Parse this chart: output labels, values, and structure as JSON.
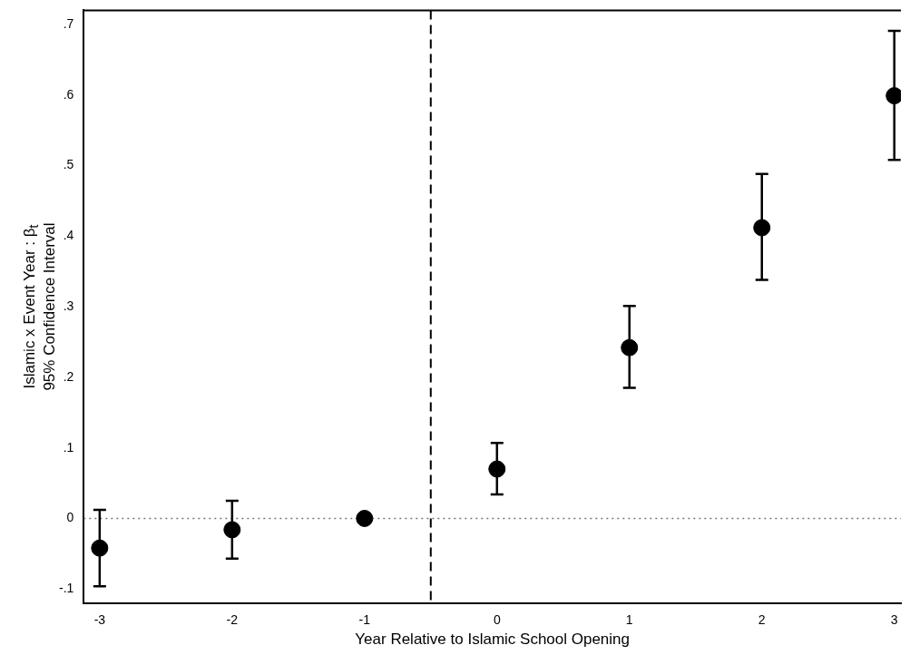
{
  "chart_data": {
    "type": "scatter",
    "xlabel": "Year Relative to Islamic School Opening",
    "ylabel": "Islamic x Event Year : β$_{t}$\n95% Confidence Interval",
    "x": [
      -3,
      -2,
      -1,
      0,
      1,
      2,
      3
    ],
    "series": [
      {
        "color": "#000000",
        "values": [
          -0.042,
          -0.016,
          0,
          0.07,
          0.242,
          0.412,
          0.599
        ],
        "errors": [
          [
            -0.096,
            0.012
          ],
          [
            -0.057,
            0.025
          ],
          null,
          [
            0.034,
            0.107
          ],
          [
            0.185,
            0.301
          ],
          [
            0.338,
            0.488
          ],
          [
            0.508,
            0.691
          ]
        ]
      }
    ],
    "xlim": [
      -3.12,
      3.05
    ],
    "xticks": [
      -3,
      -2,
      -1,
      0,
      1,
      2,
      3
    ],
    "ylim": [
      -0.12,
      0.72
    ],
    "yticks": [
      {
        "value": -0.1,
        "label": "-.1"
      },
      {
        "value": 0,
        "label": "0"
      },
      {
        "value": 0.1,
        "label": ".1"
      },
      {
        "value": 0.2,
        "label": ".2"
      },
      {
        "value": 0.3,
        "label": ".3"
      },
      {
        "value": 0.4,
        "label": ".4"
      },
      {
        "value": 0.5,
        "label": ".5"
      },
      {
        "value": 0.6,
        "label": ".6"
      },
      {
        "value": 0.7,
        "label": ".7"
      }
    ],
    "ref_lines": [
      {
        "axis": "y",
        "value": 0,
        "color": "#777777",
        "line_style": "dotted"
      },
      {
        "axis": "x",
        "value": -0.5,
        "color": "#000000",
        "line_style": "dashed"
      }
    ],
    "marker": "circle",
    "grid": false,
    "legend": false
  }
}
